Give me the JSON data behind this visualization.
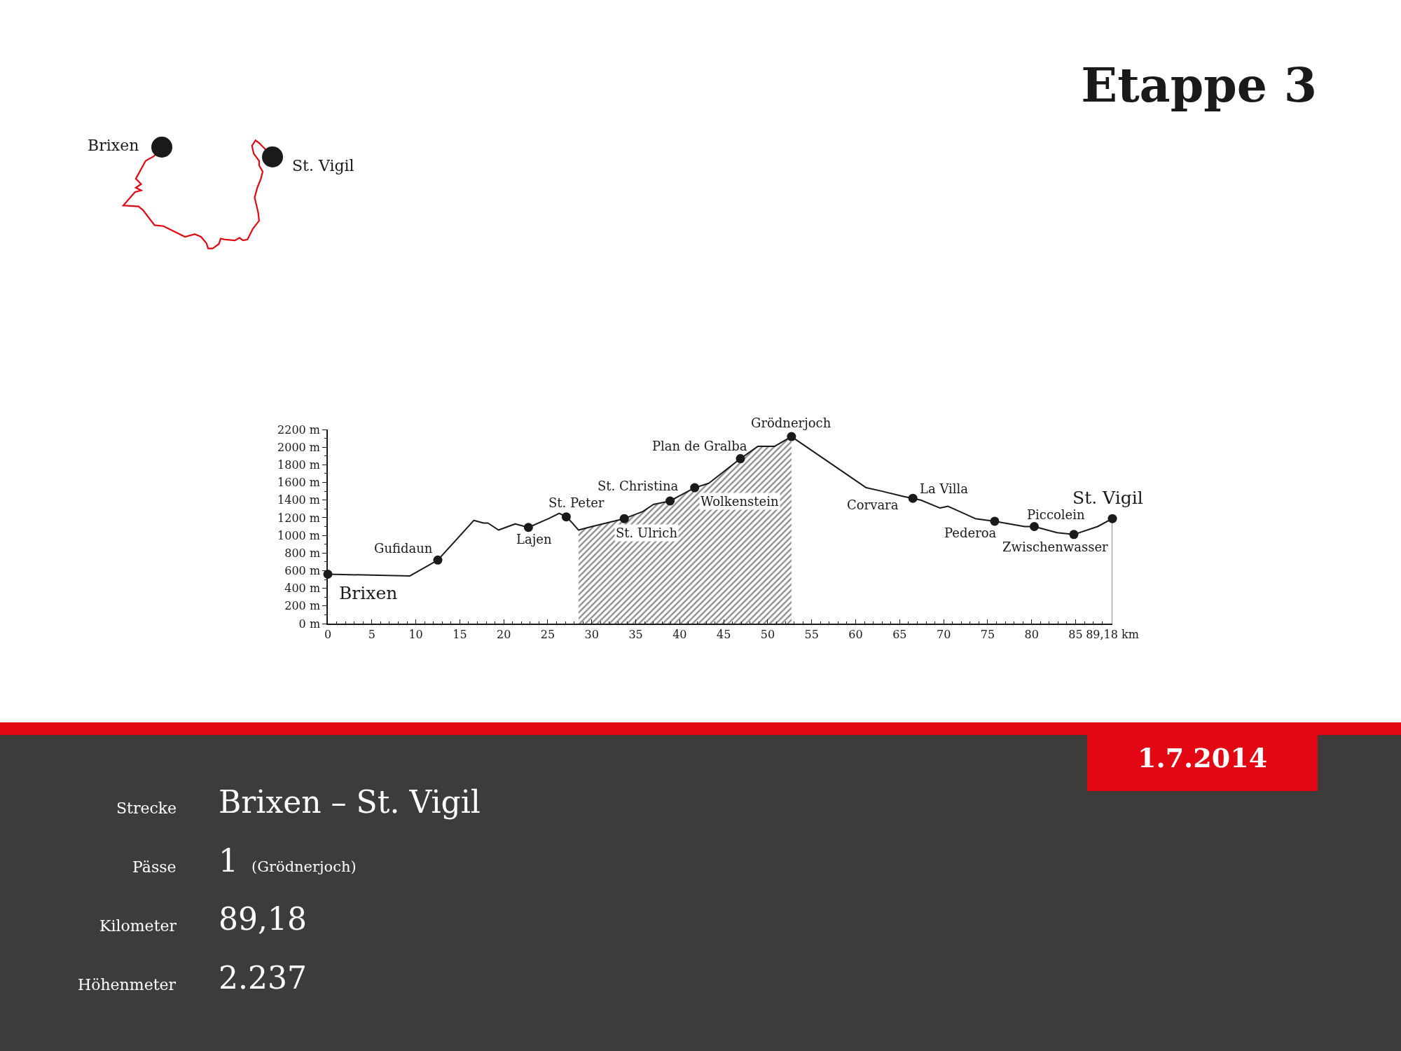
{
  "chart_data": {
    "type": "line",
    "title": "Etappe 3",
    "xlim": [
      0,
      89.18
    ],
    "xticks": [
      0,
      5,
      10,
      15,
      20,
      25,
      30,
      35,
      40,
      45,
      50,
      55,
      60,
      65,
      70,
      75,
      80,
      85,
      {
        "value": 89.18,
        "label": "89,18 km"
      },
      {
        "value": 1,
        "label": null
      },
      {
        "value": 2,
        "label": null
      },
      {
        "value": 3,
        "label": null
      },
      {
        "value": 4,
        "label": null
      },
      {
        "value": 6,
        "label": null
      },
      {
        "value": 7,
        "label": null
      },
      {
        "value": 8,
        "label": null
      },
      {
        "value": 9,
        "label": null
      },
      {
        "value": 11,
        "label": null
      },
      {
        "value": 12,
        "label": null
      },
      {
        "value": 13,
        "label": null
      },
      {
        "value": 14,
        "label": null
      },
      {
        "value": 16,
        "label": null
      },
      {
        "value": 17,
        "label": null
      },
      {
        "value": 18,
        "label": null
      },
      {
        "value": 19,
        "label": null
      },
      {
        "value": 21,
        "label": null
      },
      {
        "value": 22,
        "label": null
      },
      {
        "value": 23,
        "label": null
      },
      {
        "value": 24,
        "label": null
      },
      {
        "value": 26,
        "label": null
      },
      {
        "value": 27,
        "label": null
      },
      {
        "value": 28,
        "label": null
      },
      {
        "value": 29,
        "label": null
      },
      {
        "value": 31,
        "label": null
      },
      {
        "value": 32,
        "label": null
      },
      {
        "value": 33,
        "label": null
      },
      {
        "value": 34,
        "label": null
      },
      {
        "value": 36,
        "label": null
      },
      {
        "value": 37,
        "label": null
      },
      {
        "value": 38,
        "label": null
      },
      {
        "value": 39,
        "label": null
      },
      {
        "value": 41,
        "label": null
      },
      {
        "value": 42,
        "label": null
      },
      {
        "value": 43,
        "label": null
      },
      {
        "value": 44,
        "label": null
      },
      {
        "value": 46,
        "label": null
      },
      {
        "value": 47,
        "label": null
      },
      {
        "value": 48,
        "label": null
      },
      {
        "value": 49,
        "label": null
      },
      {
        "value": 51,
        "label": null
      },
      {
        "value": 52,
        "label": null
      },
      {
        "value": 53,
        "label": null
      },
      {
        "value": 54,
        "label": null
      },
      {
        "value": 56,
        "label": null
      },
      {
        "value": 57,
        "label": null
      },
      {
        "value": 58,
        "label": null
      },
      {
        "value": 59,
        "label": null
      },
      {
        "value": 61,
        "label": null
      },
      {
        "value": 62,
        "label": null
      },
      {
        "value": 63,
        "label": null
      },
      {
        "value": 64,
        "label": null
      },
      {
        "value": 66,
        "label": null
      },
      {
        "value": 67,
        "label": null
      },
      {
        "value": 68,
        "label": null
      },
      {
        "value": 69,
        "label": null
      },
      {
        "value": 71,
        "label": null
      },
      {
        "value": 72,
        "label": null
      },
      {
        "value": 73,
        "label": null
      },
      {
        "value": 74,
        "label": null
      },
      {
        "value": 76,
        "label": null
      },
      {
        "value": 77,
        "label": null
      },
      {
        "value": 78,
        "label": null
      },
      {
        "value": 79,
        "label": null
      },
      {
        "value": 81,
        "label": null
      },
      {
        "value": 82,
        "label": null
      },
      {
        "value": 83,
        "label": null
      },
      {
        "value": 84,
        "label": null
      },
      {
        "value": 86,
        "label": null
      },
      {
        "value": 87,
        "label": null
      },
      {
        "value": 88,
        "label": null
      }
    ],
    "ylim": [
      0,
      2200
    ],
    "yticks": [
      {
        "value": 0,
        "label": "0 m"
      },
      {
        "value": 200,
        "label": "200 m"
      },
      {
        "value": 400,
        "label": "400 m"
      },
      {
        "value": 600,
        "label": "600 m"
      },
      {
        "value": 800,
        "label": "800 m"
      },
      {
        "value": 1000,
        "label": "1000 m"
      },
      {
        "value": 1200,
        "label": "1200 m"
      },
      {
        "value": 1400,
        "label": "1400 m"
      },
      {
        "value": 1600,
        "label": "1600 m"
      },
      {
        "value": 1800,
        "label": "1800 m"
      },
      {
        "value": 2000,
        "label": "2000 m"
      },
      {
        "value": 2200,
        "label": "2200 m"
      },
      {
        "value": 100,
        "label": null
      },
      {
        "value": 300,
        "label": null
      },
      {
        "value": 500,
        "label": null
      },
      {
        "value": 700,
        "label": null
      },
      {
        "value": 900,
        "label": null
      },
      {
        "value": 1100,
        "label": null
      },
      {
        "value": 1300,
        "label": null
      },
      {
        "value": 1500,
        "label": null
      },
      {
        "value": 1700,
        "label": null
      },
      {
        "value": 1900,
        "label": null
      },
      {
        "value": 2100,
        "label": null
      }
    ],
    "series": [
      {
        "type": "area",
        "color": "#1a1a1a",
        "x": [
          28.5,
          30.0,
          33.7,
          35.8,
          37.0,
          38.9,
          41.7,
          43.3,
          46.9,
          48.9,
          50.8,
          52.7
        ],
        "values": [
          1060,
          1100,
          1190,
          1270,
          1350,
          1390,
          1540,
          1590,
          1870,
          2010,
          2010,
          2120
        ]
      },
      {
        "type": "line",
        "color": "#1a1a1a",
        "x": [
          0,
          9.3,
          12.5,
          16.6,
          17.7,
          18.2,
          19.4,
          21.3,
          22.8,
          25.1,
          26.3,
          27.1,
          27.7,
          28.5,
          30.0,
          33.7,
          35.8,
          37.0,
          38.9,
          41.7,
          43.3,
          46.9,
          48.9,
          50.8,
          52.7,
          61.2,
          63.0,
          65.5,
          66.5,
          67.4,
          69.6,
          70.5,
          73.6,
          75.8,
          79.2,
          80.3,
          82.9,
          84.8,
          87.5,
          89.18
        ],
        "values": [
          560,
          540,
          720,
          1170,
          1140,
          1140,
          1060,
          1130,
          1090,
          1190,
          1250,
          1210,
          1150,
          1060,
          1100,
          1190,
          1270,
          1350,
          1390,
          1540,
          1590,
          1870,
          2010,
          2010,
          2120,
          1540,
          1500,
          1440,
          1420,
          1400,
          1310,
          1330,
          1190,
          1160,
          1100,
          1100,
          1030,
          1010,
          1100,
          1190
        ]
      },
      {
        "type": "line",
        "color": "#8c8c8c",
        "x": [
          89.18,
          89.18
        ],
        "values": [
          1190,
          0
        ]
      },
      {
        "type": "scatter",
        "color": "#1a1a1a",
        "marker": "circle",
        "x": [
          0,
          12.5,
          22.8,
          27.1,
          33.7,
          38.9,
          41.7,
          46.9,
          52.7,
          66.5,
          75.8,
          80.3,
          84.8,
          89.18
        ],
        "values": [
          560,
          720,
          1090,
          1210,
          1190,
          1390,
          1540,
          1870,
          2120,
          1420,
          1160,
          1100,
          1010,
          1190
        ]
      }
    ],
    "annotations": [
      "Brixen",
      "St. Vigil",
      "Strecke",
      "Brixen – St. Vigil",
      "Pässe",
      "1",
      "(Grödnerjoch)",
      "Kilometer",
      "89,18",
      "Höhenmeter",
      "2.237",
      "1.7.2014",
      {
        "text": "Brixen",
        "x": 0,
        "y": 560
      },
      {
        "text": "Gufidaun",
        "x": 12.5,
        "y": 720
      },
      {
        "text": "Lajen",
        "x": 22.8,
        "y": 1090
      },
      {
        "text": "St. Peter",
        "x": 27.1,
        "y": 1210
      },
      {
        "text": "St. Ulrich",
        "x": 33.7,
        "y": 1190
      },
      {
        "text": "St. Christina",
        "x": 38.9,
        "y": 1390
      },
      {
        "text": "Wolkenstein",
        "x": 41.7,
        "y": 1540
      },
      {
        "text": "Plan de Gralba",
        "x": 46.9,
        "y": 1870
      },
      {
        "text": "Grödnerjoch",
        "x": 52.7,
        "y": 2120
      },
      {
        "text": "Corvara",
        "x": 63.0,
        "y": 1500
      },
      {
        "text": "La Villa",
        "x": 66.5,
        "y": 1420
      },
      {
        "text": "Pederoa",
        "x": 75.8,
        "y": 1160
      },
      {
        "text": "Piccolein",
        "x": 80.3,
        "y": 1100
      },
      {
        "text": "Zwischenwasser",
        "x": 84.8,
        "y": 1010
      },
      {
        "text": "St. Vigil",
        "x": 89.18,
        "y": 1190
      }
    ]
  }
}
